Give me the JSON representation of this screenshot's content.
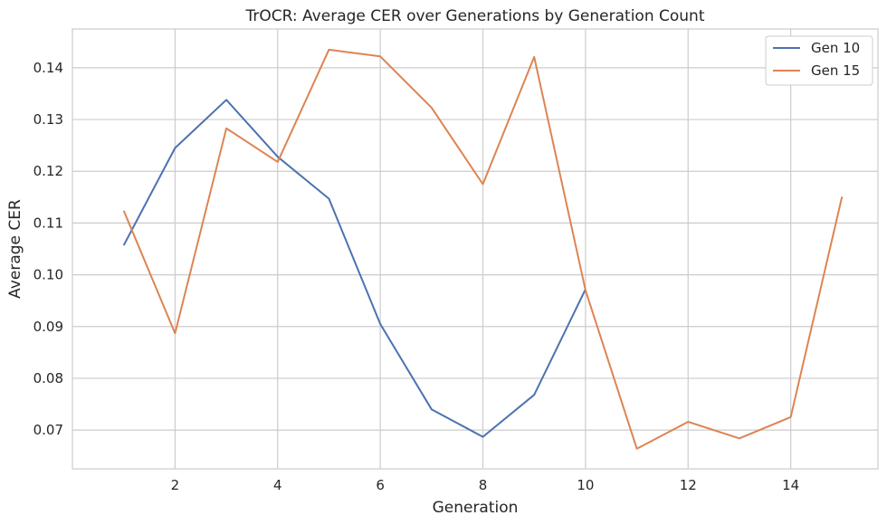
{
  "chart_data": {
    "type": "line",
    "title": "TrOCR: Average CER over Generations by Generation Count",
    "xlabel": "Generation",
    "ylabel": "Average CER",
    "xlim": [
      0.0,
      15.7
    ],
    "ylim": [
      0.0625,
      0.1475
    ],
    "xticks": [
      2,
      4,
      6,
      8,
      10,
      12,
      14
    ],
    "xtick_labels": [
      "2",
      "4",
      "6",
      "8",
      "10",
      "12",
      "14"
    ],
    "yticks": [
      0.07,
      0.08,
      0.09,
      0.1,
      0.11,
      0.12,
      0.13,
      0.14
    ],
    "ytick_labels": [
      "0.07",
      "0.08",
      "0.09",
      "0.10",
      "0.11",
      "0.12",
      "0.13",
      "0.14"
    ],
    "grid": true,
    "legend_position": "top-right",
    "series": [
      {
        "name": "Gen 10",
        "color": "#4c72b0",
        "x": [
          1,
          2,
          3,
          4,
          5,
          6,
          7,
          8,
          9,
          10
        ],
        "y": [
          0.1057,
          0.1245,
          0.1338,
          0.1228,
          0.1147,
          0.0905,
          0.074,
          0.0687,
          0.0768,
          0.0972
        ]
      },
      {
        "name": "Gen 15",
        "color": "#dd8452",
        "x": [
          1,
          2,
          3,
          4,
          5,
          6,
          7,
          8,
          9,
          10,
          11,
          12,
          13,
          14,
          15
        ],
        "y": [
          0.1124,
          0.0887,
          0.1283,
          0.1218,
          0.1435,
          0.1422,
          0.1323,
          0.1175,
          0.1421,
          0.097,
          0.0664,
          0.0716,
          0.0684,
          0.0725,
          0.1151
        ]
      }
    ]
  }
}
